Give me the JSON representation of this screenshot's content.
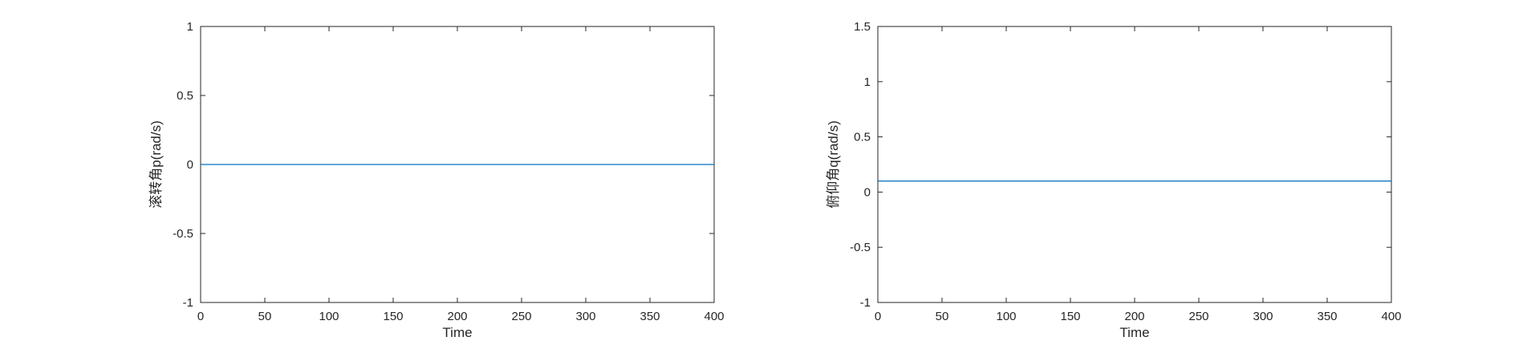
{
  "chart_data": [
    {
      "type": "line",
      "title": "",
      "xlabel": "Time",
      "ylabel": "滚转角p(rad/s)",
      "xlim": [
        0,
        400
      ],
      "ylim": [
        -1,
        1
      ],
      "xticks": [
        0,
        50,
        100,
        150,
        200,
        250,
        300,
        350,
        400
      ],
      "yticks": [
        -1,
        -0.5,
        0,
        0.5,
        1
      ],
      "xtick_labels": [
        "0",
        "50",
        "100",
        "150",
        "200",
        "250",
        "300",
        "350",
        "400"
      ],
      "ytick_labels": [
        "-1",
        "-0.5",
        "0",
        "0.5",
        "1"
      ],
      "grid": false,
      "series": [
        {
          "color": "#0072BD",
          "x": [
            0,
            400
          ],
          "y": [
            0,
            0
          ]
        }
      ]
    },
    {
      "type": "line",
      "title": "",
      "xlabel": "Time",
      "ylabel": "俯仰角q(rad/s)",
      "xlim": [
        0,
        400
      ],
      "ylim": [
        -1,
        1.5
      ],
      "xticks": [
        0,
        50,
        100,
        150,
        200,
        250,
        300,
        350,
        400
      ],
      "yticks": [
        -1,
        -0.5,
        0,
        0.5,
        1,
        1.5
      ],
      "xtick_labels": [
        "0",
        "50",
        "100",
        "150",
        "200",
        "250",
        "300",
        "350",
        "400"
      ],
      "ytick_labels": [
        "-1",
        "-0.5",
        "0",
        "0.5",
        "1",
        "1.5"
      ],
      "grid": false,
      "series": [
        {
          "color": "#0072BD",
          "x": [
            0,
            400
          ],
          "y": [
            0.1,
            0.1
          ]
        }
      ]
    }
  ]
}
